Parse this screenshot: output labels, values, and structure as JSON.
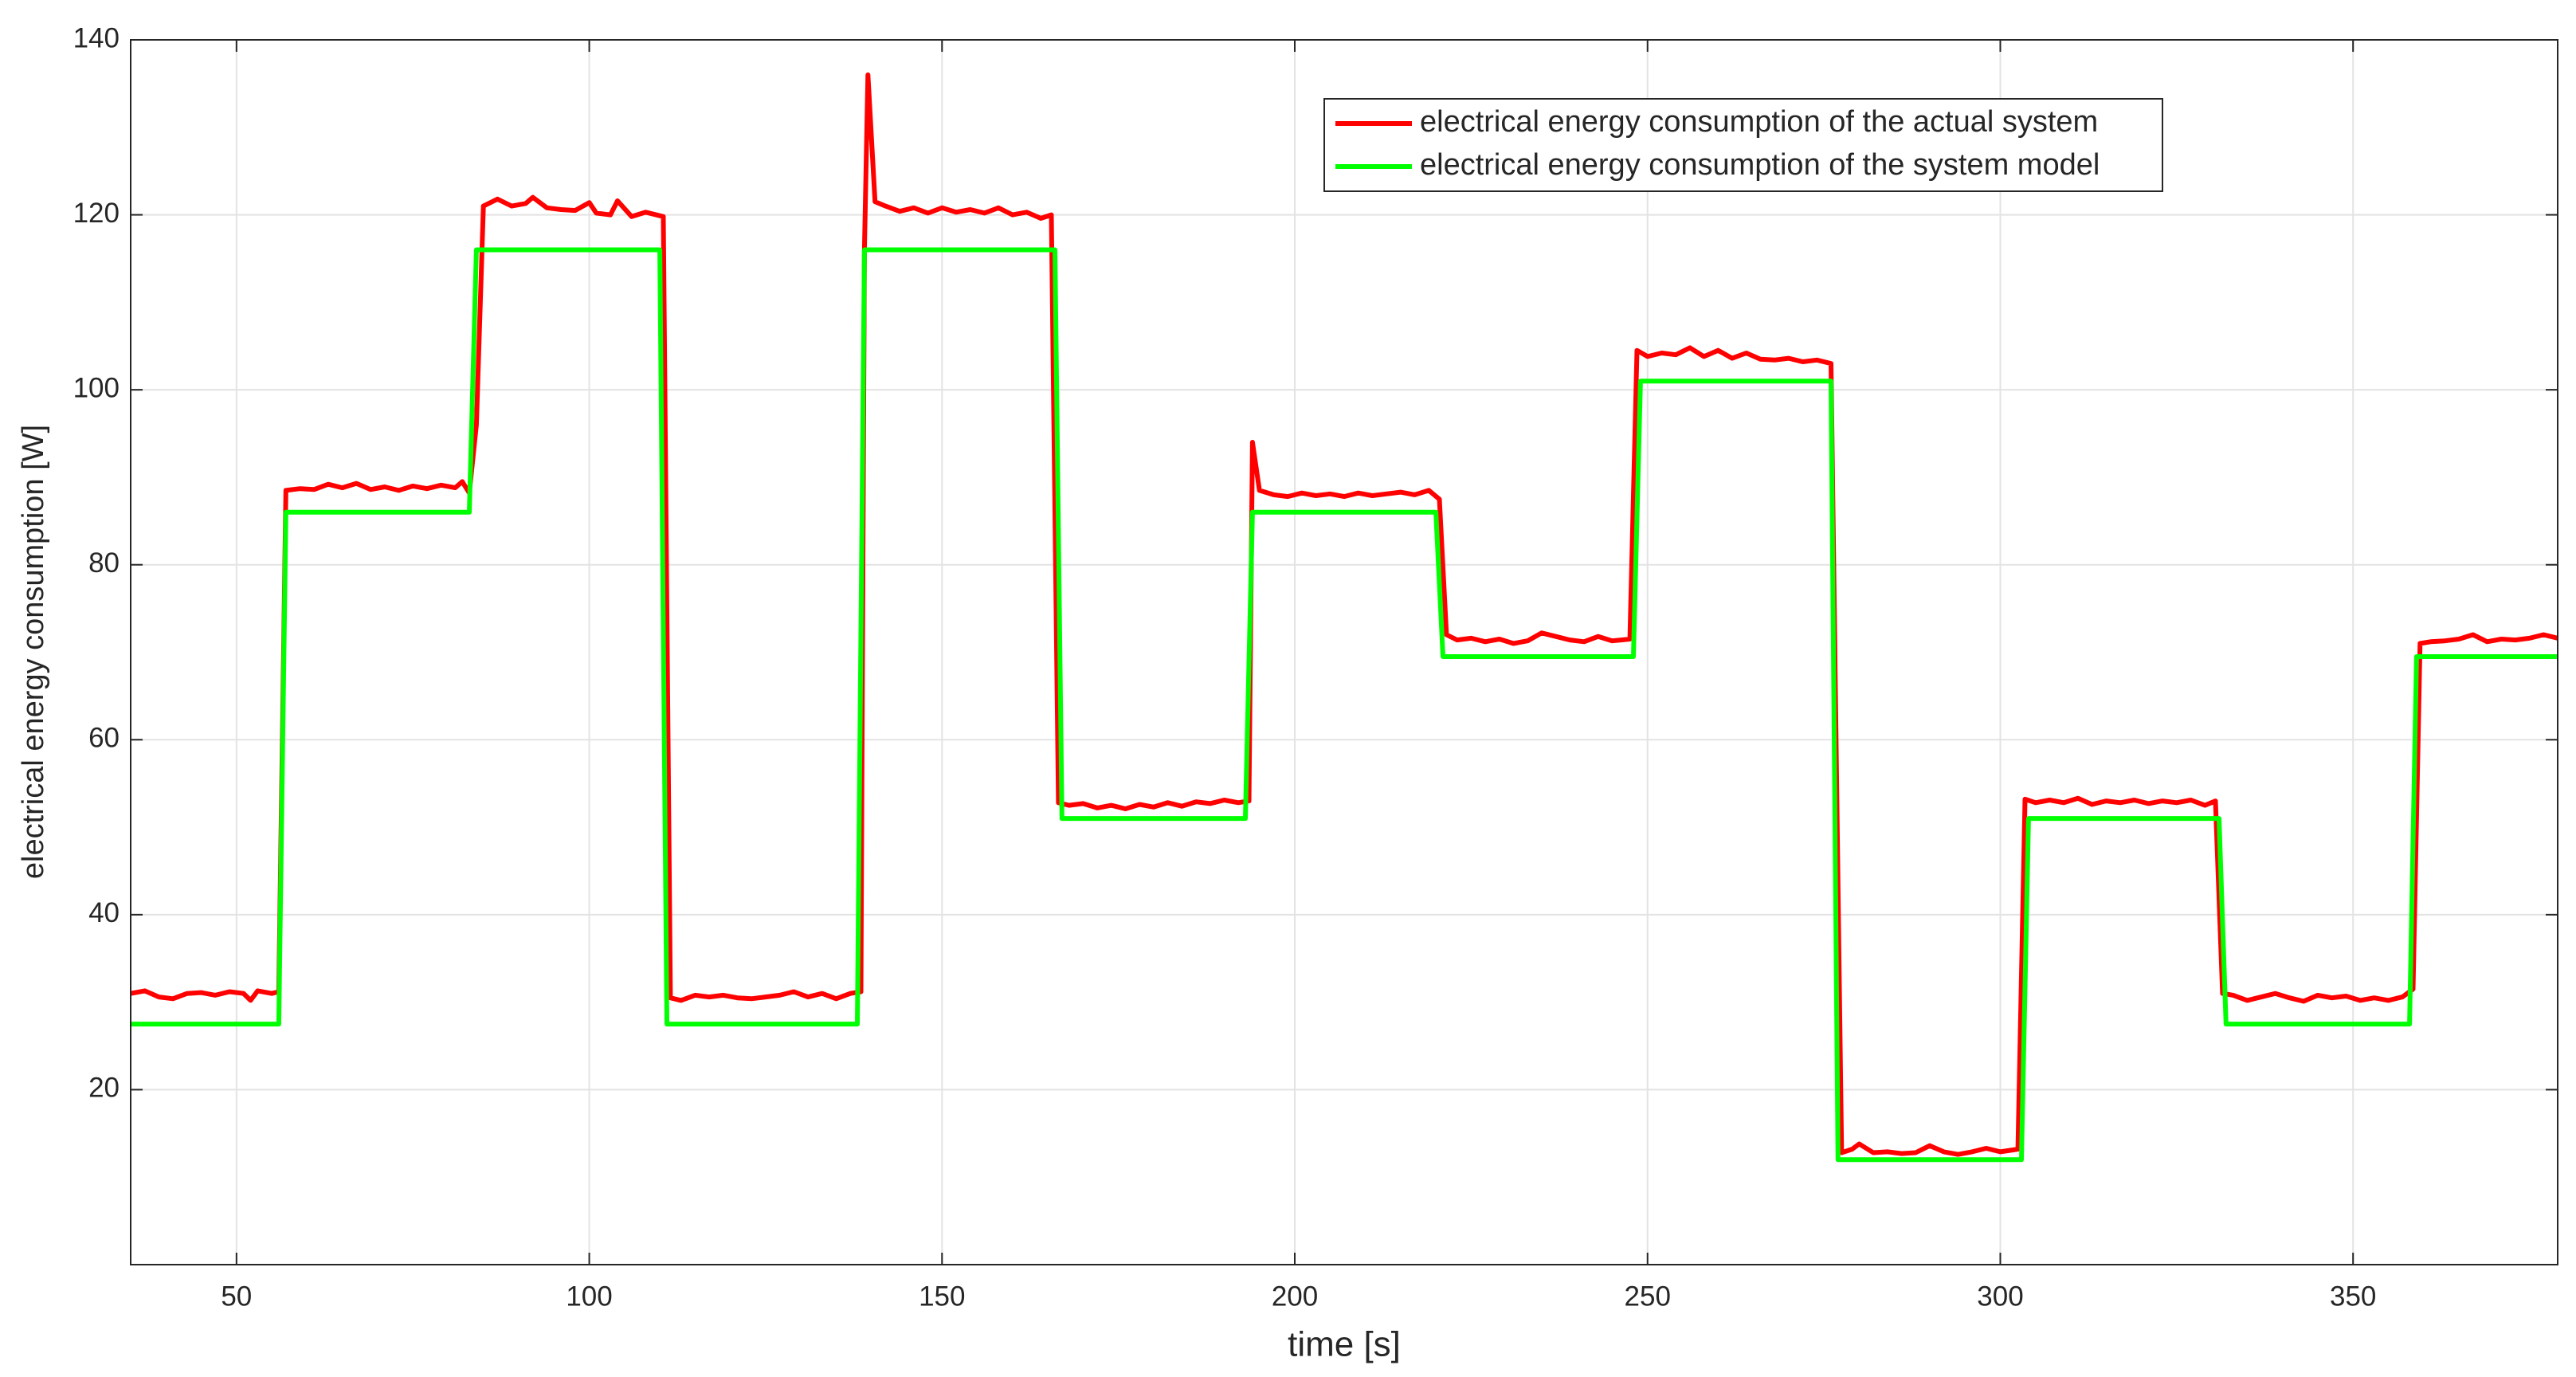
{
  "chart_data": {
    "type": "line",
    "x_label": "time [s]",
    "y_label": "electrical energy consumption [W]",
    "xlim": [
      35,
      379
    ],
    "ylim": [
      0,
      140
    ],
    "xticks": [
      50,
      100,
      150,
      200,
      250,
      300,
      350
    ],
    "yticks": [
      20,
      40,
      60,
      80,
      100,
      120,
      140
    ],
    "grid": true,
    "legend": "upper right",
    "series": [
      {
        "name": "electrical energy consumption of the actual system",
        "color": "#ff0000",
        "x": [
          35,
          37,
          39,
          41,
          43,
          45,
          47,
          49,
          51,
          52,
          53,
          55,
          56,
          57,
          59,
          61,
          63,
          65,
          67,
          69,
          71,
          73,
          75,
          77,
          79,
          81,
          82,
          83,
          84,
          85,
          87,
          89,
          91,
          92,
          94,
          96,
          98,
          100,
          101,
          103,
          104,
          106,
          108,
          110.5,
          111.5,
          113,
          115,
          117,
          119,
          121,
          123,
          125,
          127,
          129,
          131,
          133,
          135,
          137,
          138.5,
          139,
          139.5,
          140.5,
          142,
          144,
          146,
          148,
          150,
          152,
          154,
          156,
          158,
          160,
          162,
          164,
          165.5,
          166.5,
          168,
          170,
          172,
          174,
          176,
          178,
          180,
          182,
          184,
          186,
          188,
          190,
          192,
          193.5,
          194,
          195,
          197,
          199,
          201,
          203,
          205,
          207,
          209,
          211,
          213,
          215,
          217,
          219,
          220.5,
          221.5,
          223,
          225,
          227,
          229,
          231,
          233,
          235,
          237,
          239,
          241,
          243,
          245,
          247.5,
          248.5,
          250,
          252,
          254,
          256,
          258,
          260,
          262,
          264,
          266,
          268,
          270,
          272,
          274,
          276,
          277.5,
          279,
          280,
          282,
          284,
          286,
          288,
          290,
          292,
          294,
          296,
          298,
          300,
          302.5,
          303.5,
          305,
          307,
          309,
          311,
          313,
          315,
          317,
          319,
          321,
          323,
          325,
          327,
          329,
          330.5,
          331.5,
          333,
          335,
          337,
          339,
          341,
          343,
          345,
          347,
          349,
          351,
          353,
          355,
          357,
          358.5,
          359.5,
          361,
          363,
          365,
          367,
          369,
          371,
          373,
          375,
          377,
          379
        ],
        "values": [
          31,
          31.3,
          30.6,
          30.4,
          31,
          31.1,
          30.8,
          31.2,
          31,
          30.2,
          31.3,
          31,
          31.2,
          88.5,
          88.7,
          88.6,
          89.2,
          88.8,
          89.3,
          88.6,
          88.9,
          88.5,
          89,
          88.7,
          89.1,
          88.8,
          89.5,
          88.2,
          96,
          121,
          121.8,
          121,
          121.3,
          122,
          120.8,
          120.6,
          120.5,
          121.4,
          120.2,
          120,
          121.6,
          119.8,
          120.3,
          119.8,
          30.5,
          30.2,
          30.8,
          30.6,
          30.8,
          30.5,
          30.4,
          30.6,
          30.8,
          31.2,
          30.6,
          31,
          30.4,
          31,
          31.2,
          116,
          136,
          121.5,
          121,
          120.4,
          120.8,
          120.2,
          120.8,
          120.3,
          120.6,
          120.2,
          120.8,
          120,
          120.3,
          119.6,
          120,
          52.8,
          52.5,
          52.7,
          52.2,
          52.5,
          52.1,
          52.6,
          52.3,
          52.8,
          52.4,
          52.9,
          52.7,
          53.1,
          52.8,
          53,
          94,
          88.5,
          88,
          87.8,
          88.2,
          87.9,
          88.1,
          87.8,
          88.2,
          87.9,
          88.1,
          88.3,
          88,
          88.5,
          87.5,
          72,
          71.4,
          71.6,
          71.2,
          71.5,
          71,
          71.3,
          72.2,
          71.8,
          71.4,
          71.2,
          71.8,
          71.3,
          71.5,
          104.5,
          103.8,
          104.2,
          104,
          104.8,
          103.8,
          104.5,
          103.6,
          104.2,
          103.5,
          103.4,
          103.6,
          103.2,
          103.4,
          103,
          12.8,
          13.2,
          13.8,
          12.8,
          12.9,
          12.7,
          12.8,
          13.6,
          12.9,
          12.6,
          12.9,
          13.3,
          12.9,
          13.2,
          53.2,
          52.8,
          53.1,
          52.8,
          53.3,
          52.6,
          53,
          52.8,
          53.1,
          52.7,
          53,
          52.8,
          53.1,
          52.5,
          53,
          31,
          30.8,
          30.2,
          30.6,
          31,
          30.5,
          30.1,
          30.8,
          30.5,
          30.7,
          30.2,
          30.5,
          30.2,
          30.6,
          31.5,
          71,
          71.2,
          71.3,
          71.5,
          72,
          71.2,
          71.5,
          71.4,
          71.6,
          72,
          71.6
        ]
      },
      {
        "name": "electrical energy consumption of the system model",
        "color": "#00ff00",
        "x": [
          35,
          56,
          57,
          83,
          84,
          110,
          111,
          138,
          139,
          166,
          167,
          193,
          194,
          220,
          221,
          248,
          249,
          276,
          277,
          303,
          304,
          331,
          332,
          358,
          359,
          379
        ],
        "values": [
          27.5,
          27.5,
          86,
          86,
          116,
          116,
          27.5,
          27.5,
          116,
          116,
          51,
          51,
          86,
          86,
          69.5,
          69.5,
          101,
          101,
          12,
          12,
          51,
          51,
          27.5,
          27.5,
          69.5,
          69.5
        ]
      }
    ]
  }
}
